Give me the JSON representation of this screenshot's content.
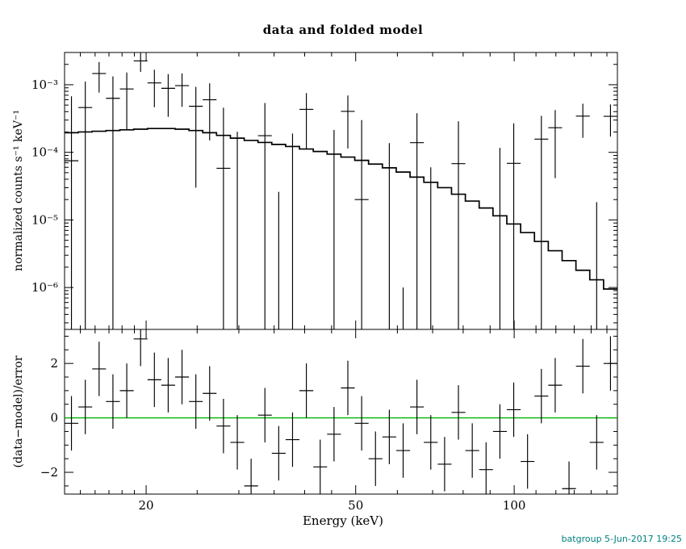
{
  "title": "data and folded model",
  "footer": "batgroup  5-Jun-2017 19:25",
  "colors": {
    "foreground": "#000000",
    "zero_line": "#00b400",
    "footer_text": "#008080",
    "background": "#ffffff"
  },
  "chart_data": {
    "type": "scatter",
    "title": "data and folded model",
    "xlabel": "Energy (keV)",
    "x_scale": "log",
    "x_range": [
      14.0,
      157.04
    ],
    "x_ticks": [
      {
        "value": 20,
        "label": "20"
      },
      {
        "value": 50,
        "label": "50"
      },
      {
        "value": 100,
        "label": "100"
      }
    ],
    "x_minor_ticks": [
      15,
      16,
      17,
      18,
      19,
      25,
      30,
      35,
      40,
      45,
      60,
      70,
      80,
      90,
      110,
      120,
      130,
      140,
      150
    ],
    "panels": [
      {
        "name": "spectrum",
        "ylabel": "normalized counts s⁻¹ keV⁻¹",
        "y_scale": "log",
        "y_range": [
          2.4e-07,
          0.003
        ],
        "y_ticks": [
          {
            "value": 0.001,
            "label": "10⁻³"
          },
          {
            "value": 0.0001,
            "label": "10⁻⁴"
          },
          {
            "value": 1e-05,
            "label": "10⁻⁵"
          },
          {
            "value": 1e-06,
            "label": "10⁻⁶"
          }
        ]
      },
      {
        "name": "residuals",
        "ylabel": "(data−model)/error",
        "y_scale": "linear",
        "y_range": [
          -2.8,
          3.25
        ],
        "y_ticks": [
          {
            "value": 2,
            "label": "2"
          },
          {
            "value": 0,
            "label": "0"
          },
          {
            "value": -2,
            "label": "−2"
          }
        ],
        "zero_line": 0,
        "residual_error": 1
      }
    ],
    "definition": "data_value = model + residual * error ; residual error bars are ±1",
    "bin_edges": [
      14.0,
      14.87,
      15.8,
      16.78,
      17.83,
      18.94,
      20.12,
      21.37,
      22.7,
      24.12,
      25.62,
      27.21,
      28.91,
      30.71,
      32.62,
      34.65,
      36.81,
      39.1,
      41.54,
      44.13,
      46.88,
      49.8,
      52.9,
      56.2,
      59.7,
      63.42,
      67.37,
      71.57,
      76.03,
      80.77,
      85.8,
      91.15,
      96.83,
      102.86,
      109.27,
      116.08,
      123.31,
      131.0,
      139.16,
      147.83,
      157.04
    ],
    "model": [
      0.000195,
      0.0002,
      0.000205,
      0.00021,
      0.000215,
      0.00022,
      0.000225,
      0.000225,
      0.00022,
      0.00021,
      0.000195,
      0.000178,
      0.000162,
      0.00015,
      0.00014,
      0.000131,
      0.000122,
      0.000112,
      0.000103,
      9.4e-05,
      8.5e-05,
      7.6e-05,
      6.7e-05,
      5.9e-05,
      5.1e-05,
      4.3e-05,
      3.6e-05,
      3e-05,
      2.4e-05,
      1.9e-05,
      1.5e-05,
      1.15e-05,
      8.7e-06,
      6.5e-06,
      4.8e-06,
      3.5e-06,
      2.5e-06,
      1.8e-06,
      1.3e-06,
      9.5e-07
    ],
    "residuals": [
      -0.2,
      0.4,
      1.8,
      0.6,
      1.0,
      2.9,
      1.4,
      1.2,
      1.5,
      0.6,
      0.9,
      -0.3,
      -0.9,
      -2.5,
      0.1,
      -1.3,
      -0.8,
      1.0,
      -1.8,
      -0.6,
      1.1,
      -0.2,
      -1.5,
      -0.7,
      -1.2,
      0.4,
      -0.9,
      -1.7,
      0.2,
      -1.2,
      -1.9,
      -0.5,
      0.3,
      -1.6,
      0.8,
      1.2,
      -2.6,
      1.9,
      -0.9,
      2.0
    ],
    "errors": [
      0.0006,
      0.00065,
      0.0007,
      0.0007,
      0.00065,
      0.0007,
      0.0006,
      0.00055,
      0.0005,
      0.00045,
      0.00045,
      0.0004,
      0.0004,
      0.00038,
      0.00036,
      0.00035,
      0.00034,
      0.00032,
      0.00031,
      0.0003,
      0.00029,
      0.00028,
      0.00027,
      0.00026,
      0.00025,
      0.00024,
      0.00024,
      0.00023,
      0.00022,
      0.00022,
      0.00021,
      0.00021,
      0.0002,
      0.0002,
      0.00019,
      0.00019,
      0.00018,
      0.00018,
      0.00017,
      0.00017
    ]
  }
}
